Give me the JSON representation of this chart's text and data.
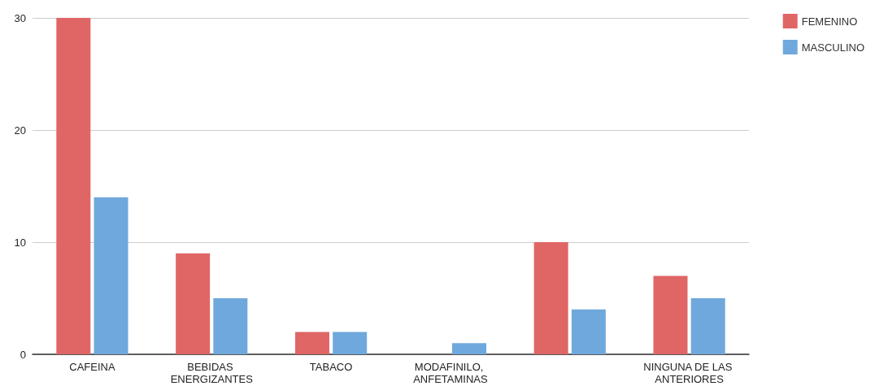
{
  "chart_data": {
    "type": "bar",
    "categories": [
      "CAFEINA",
      "BEBIDAS ENERGIZANTES",
      "TABACO",
      "MODAFINILO, ANFETAMINAS",
      null,
      "NINGUNA DE LAS ANTERIORES"
    ],
    "series": [
      {
        "name": "FEMENINO",
        "color": "#e06666",
        "values": [
          30,
          9,
          2,
          0,
          10,
          7
        ]
      },
      {
        "name": "MASCULINO",
        "color": "#6fa8dc",
        "values": [
          14,
          5,
          2,
          1,
          4,
          5
        ]
      }
    ],
    "ylim": [
      0,
      30
    ],
    "yticks": [
      0,
      10,
      20,
      30
    ],
    "grid": "y",
    "legend": "top right"
  }
}
